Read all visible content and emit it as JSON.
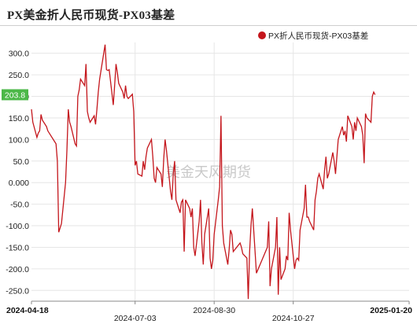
{
  "chart_data": {
    "type": "line",
    "title": "PX美金折人民币现货-PX03基差",
    "legend": {
      "position": "top-right",
      "entries": [
        "PX折人民币现货-PX03基差"
      ]
    },
    "series": [
      {
        "name": "PX折人民币现货-PX03基差",
        "color": "#c4161c",
        "points": [
          [
            "2024-04-18",
            170
          ],
          [
            "2024-04-19",
            140
          ],
          [
            "2024-04-22",
            105
          ],
          [
            "2024-04-23",
            115
          ],
          [
            "2024-04-24",
            120
          ],
          [
            "2024-04-25",
            158
          ],
          [
            "2024-04-26",
            145
          ],
          [
            "2024-04-29",
            130
          ],
          [
            "2024-04-30",
            120
          ],
          [
            "2024-05-06",
            90
          ],
          [
            "2024-05-07",
            50
          ],
          [
            "2024-05-08",
            -115
          ],
          [
            "2024-05-09",
            -105
          ],
          [
            "2024-05-10",
            -95
          ],
          [
            "2024-05-13",
            0
          ],
          [
            "2024-05-14",
            75
          ],
          [
            "2024-05-15",
            170
          ],
          [
            "2024-05-16",
            140
          ],
          [
            "2024-05-17",
            130
          ],
          [
            "2024-05-20",
            90
          ],
          [
            "2024-05-21",
            85
          ],
          [
            "2024-05-22",
            200
          ],
          [
            "2024-05-23",
            215
          ],
          [
            "2024-05-24",
            240
          ],
          [
            "2024-05-27",
            225
          ],
          [
            "2024-05-28",
            275
          ],
          [
            "2024-05-29",
            165
          ],
          [
            "2024-05-30",
            150
          ],
          [
            "2024-05-31",
            140
          ],
          [
            "2024-06-03",
            155
          ],
          [
            "2024-06-04",
            135
          ],
          [
            "2024-06-05",
            170
          ],
          [
            "2024-06-06",
            210
          ],
          [
            "2024-06-07",
            240
          ],
          [
            "2024-06-11",
            320
          ],
          [
            "2024-06-12",
            262
          ],
          [
            "2024-06-13",
            260
          ],
          [
            "2024-06-14",
            262
          ],
          [
            "2024-06-17",
            180
          ],
          [
            "2024-06-18",
            225
          ],
          [
            "2024-06-19",
            275
          ],
          [
            "2024-06-20",
            255
          ],
          [
            "2024-06-21",
            230
          ],
          [
            "2024-06-24",
            210
          ],
          [
            "2024-06-25",
            195
          ],
          [
            "2024-06-26",
            225
          ],
          [
            "2024-06-27",
            200
          ],
          [
            "2024-06-28",
            195
          ],
          [
            "2024-07-01",
            205
          ],
          [
            "2024-07-02",
            165
          ],
          [
            "2024-07-03",
            40
          ],
          [
            "2024-07-04",
            50
          ],
          [
            "2024-07-05",
            20
          ],
          [
            "2024-07-08",
            15
          ],
          [
            "2024-07-09",
            50
          ],
          [
            "2024-07-10",
            30
          ],
          [
            "2024-07-11",
            60
          ],
          [
            "2024-07-12",
            80
          ],
          [
            "2024-07-15",
            100
          ],
          [
            "2024-07-16",
            60
          ],
          [
            "2024-07-17",
            10
          ],
          [
            "2024-07-18",
            0
          ],
          [
            "2024-07-19",
            35
          ],
          [
            "2024-07-22",
            20
          ],
          [
            "2024-07-23",
            -10
          ],
          [
            "2024-07-24",
            55
          ],
          [
            "2024-07-25",
            100
          ],
          [
            "2024-07-26",
            75
          ],
          [
            "2024-07-29",
            -20
          ],
          [
            "2024-07-30",
            -40
          ],
          [
            "2024-07-31",
            20
          ],
          [
            "2024-08-01",
            50
          ],
          [
            "2024-08-02",
            -40
          ],
          [
            "2024-08-05",
            -70
          ],
          [
            "2024-08-06",
            -45
          ],
          [
            "2024-08-07",
            -40
          ],
          [
            "2024-08-08",
            -160
          ],
          [
            "2024-08-09",
            -40
          ],
          [
            "2024-08-12",
            -60
          ],
          [
            "2024-08-13",
            -80
          ],
          [
            "2024-08-14",
            -60
          ],
          [
            "2024-08-15",
            -150
          ],
          [
            "2024-08-16",
            -170
          ],
          [
            "2024-08-19",
            -90
          ],
          [
            "2024-08-20",
            -40
          ],
          [
            "2024-08-21",
            -140
          ],
          [
            "2024-08-22",
            -190
          ],
          [
            "2024-08-23",
            -120
          ],
          [
            "2024-08-26",
            -60
          ],
          [
            "2024-08-27",
            -175
          ],
          [
            "2024-08-28",
            -200
          ],
          [
            "2024-08-29",
            -180
          ],
          [
            "2024-08-30",
            -120
          ],
          [
            "2024-09-02",
            -40
          ],
          [
            "2024-09-03",
            -10
          ],
          [
            "2024-09-04",
            155
          ],
          [
            "2024-09-05",
            -100
          ],
          [
            "2024-09-06",
            -140
          ],
          [
            "2024-09-09",
            -190
          ],
          [
            "2024-09-10",
            -155
          ],
          [
            "2024-09-11",
            -110
          ],
          [
            "2024-09-12",
            -120
          ],
          [
            "2024-09-13",
            -160
          ],
          [
            "2024-09-18",
            -140
          ],
          [
            "2024-09-19",
            -150
          ],
          [
            "2024-09-20",
            -165
          ],
          [
            "2024-09-23",
            -175
          ],
          [
            "2024-09-24",
            -270
          ],
          [
            "2024-09-25",
            -160
          ],
          [
            "2024-09-26",
            -100
          ],
          [
            "2024-09-27",
            -60
          ],
          [
            "2024-09-30",
            -210
          ],
          [
            "2024-10-08",
            -150
          ],
          [
            "2024-10-09",
            -90
          ],
          [
            "2024-10-10",
            -240
          ],
          [
            "2024-10-11",
            -200
          ],
          [
            "2024-10-14",
            -150
          ],
          [
            "2024-10-15",
            -80
          ],
          [
            "2024-10-16",
            -260
          ],
          [
            "2024-10-17",
            -150
          ],
          [
            "2024-10-18",
            -225
          ],
          [
            "2024-10-21",
            -200
          ],
          [
            "2024-10-22",
            -170
          ],
          [
            "2024-10-23",
            -180
          ],
          [
            "2024-10-24",
            -70
          ],
          [
            "2024-10-25",
            -110
          ],
          [
            "2024-10-28",
            -200
          ],
          [
            "2024-10-29",
            -180
          ],
          [
            "2024-10-30",
            -175
          ],
          [
            "2024-10-31",
            -180
          ],
          [
            "2024-11-01",
            -110
          ],
          [
            "2024-11-04",
            -60
          ],
          [
            "2024-11-05",
            -5
          ],
          [
            "2024-11-06",
            -80
          ],
          [
            "2024-11-07",
            -80
          ],
          [
            "2024-11-08",
            -90
          ],
          [
            "2024-11-11",
            -110
          ],
          [
            "2024-11-12",
            -40
          ],
          [
            "2024-11-13",
            -20
          ],
          [
            "2024-11-14",
            10
          ],
          [
            "2024-11-15",
            20
          ],
          [
            "2024-11-18",
            -15
          ],
          [
            "2024-11-19",
            30
          ],
          [
            "2024-11-20",
            60
          ],
          [
            "2024-11-21",
            10
          ],
          [
            "2024-11-22",
            20
          ],
          [
            "2024-11-25",
            70
          ],
          [
            "2024-11-26",
            50
          ],
          [
            "2024-11-27",
            20
          ],
          [
            "2024-11-28",
            60
          ],
          [
            "2024-11-29",
            100
          ],
          [
            "2024-12-02",
            130
          ],
          [
            "2024-12-03",
            110
          ],
          [
            "2024-12-04",
            120
          ],
          [
            "2024-12-05",
            95
          ],
          [
            "2024-12-06",
            155
          ],
          [
            "2024-12-09",
            130
          ],
          [
            "2024-12-10",
            100
          ],
          [
            "2024-12-11",
            140
          ],
          [
            "2024-12-12",
            120
          ],
          [
            "2024-12-13",
            150
          ],
          [
            "2024-12-16",
            130
          ],
          [
            "2024-12-17",
            110
          ],
          [
            "2024-12-18",
            45
          ],
          [
            "2024-12-19",
            160
          ],
          [
            "2024-12-20",
            150
          ],
          [
            "2024-12-23",
            140
          ],
          [
            "2024-12-24",
            200
          ],
          [
            "2024-12-25",
            210
          ],
          [
            "2024-12-26",
            203.8
          ]
        ]
      }
    ],
    "x_axis": {
      "type": "date",
      "range": [
        "2024-04-18",
        "2025-01-20"
      ],
      "ticks": [
        {
          "date": "2024-04-18",
          "label": "2024-04-18",
          "bold": true,
          "row": 0
        },
        {
          "date": "2024-07-03",
          "label": "2024-07-03",
          "bold": false,
          "row": 1
        },
        {
          "date": "2024-08-30",
          "label": "2024-08-30",
          "bold": false,
          "row": 0
        },
        {
          "date": "2024-10-27",
          "label": "2024-10-27",
          "bold": false,
          "row": 1
        },
        {
          "date": "2025-01-20",
          "label": "2025-01-20",
          "bold": true,
          "row": 0
        }
      ]
    },
    "y_axis": {
      "range": [
        -275,
        325
      ],
      "ticks": [
        300,
        250,
        200,
        150,
        100,
        50,
        0,
        -50,
        -100,
        -150,
        -200,
        -250
      ],
      "tick_labels": [
        "300.0",
        "250.0",
        "200.0",
        "150.0",
        "100.0",
        "50.0",
        "0.000",
        "-50.0",
        "-100.0",
        "-150.0",
        "-200.0",
        "-250.0"
      ]
    },
    "last_value": {
      "value": 203.8,
      "label": "203.8",
      "color": "#4cb848"
    },
    "watermark": "美金天风期货"
  }
}
